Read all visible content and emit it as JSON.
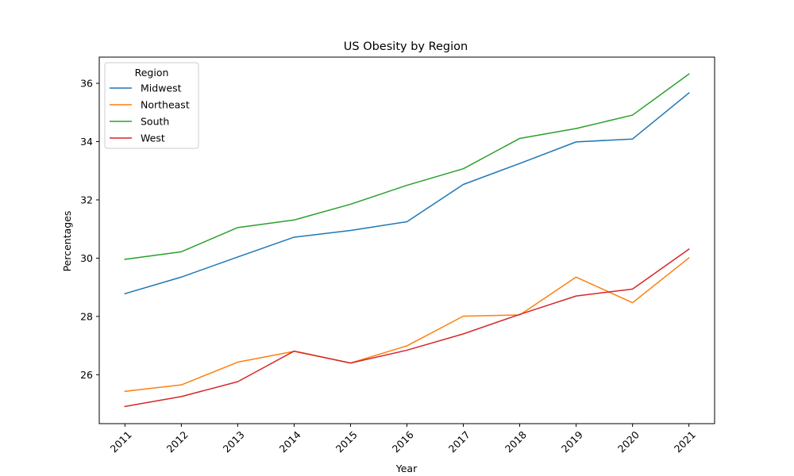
{
  "chart_data": {
    "type": "line",
    "title": "US Obesity by Region",
    "xlabel": "Year",
    "ylabel": "Percentages",
    "x": [
      2011,
      2012,
      2013,
      2014,
      2015,
      2016,
      2017,
      2018,
      2019,
      2020,
      2021
    ],
    "ylim": [
      24.32,
      36.9
    ],
    "yticks": [
      26,
      28,
      30,
      32,
      34,
      36
    ],
    "grid": false,
    "legend": {
      "title": "Region",
      "placement": "top-left"
    },
    "series": [
      {
        "name": "Midwest",
        "color": "#1f77b4",
        "values": [
          28.78,
          29.35,
          30.04,
          30.72,
          30.95,
          31.25,
          32.53,
          33.25,
          33.99,
          34.09,
          35.67
        ]
      },
      {
        "name": "Northeast",
        "color": "#ff7f0e",
        "values": [
          25.43,
          25.65,
          26.43,
          26.8,
          26.4,
          26.99,
          28.01,
          28.05,
          29.35,
          28.47,
          30.01
        ]
      },
      {
        "name": "South",
        "color": "#2ca02c",
        "values": [
          29.96,
          30.22,
          31.05,
          31.31,
          31.85,
          32.5,
          33.07,
          34.11,
          34.45,
          34.91,
          36.32
        ]
      },
      {
        "name": "West",
        "color": "#d62728",
        "values": [
          24.91,
          25.25,
          25.76,
          26.81,
          26.4,
          26.84,
          27.4,
          28.07,
          28.7,
          28.94,
          30.31
        ]
      }
    ]
  }
}
